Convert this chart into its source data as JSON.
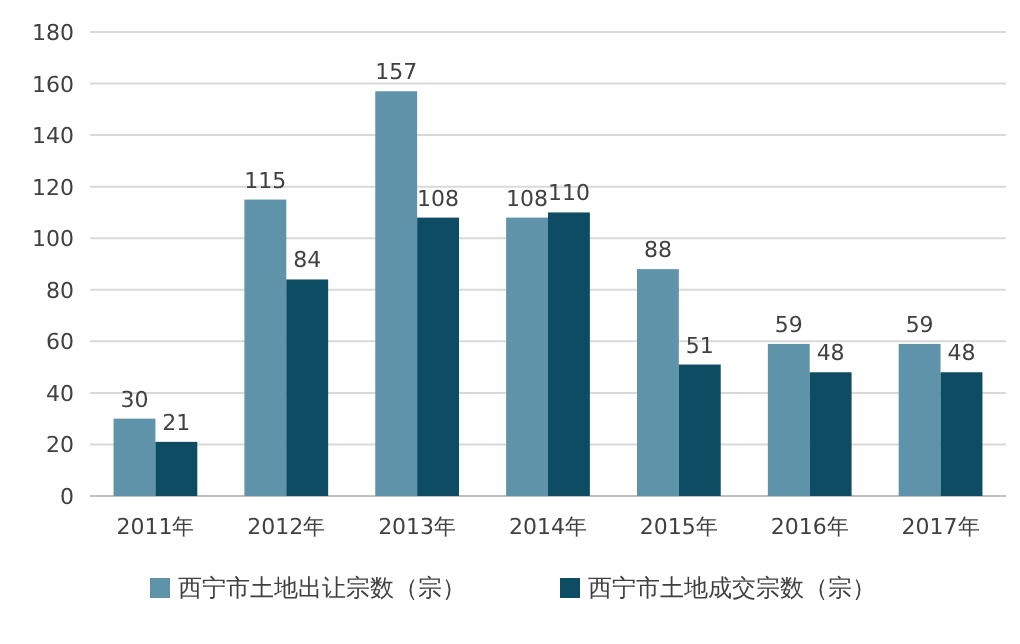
{
  "chart_data": {
    "type": "bar",
    "categories": [
      "2011年",
      "2012年",
      "2013年",
      "2014年",
      "2015年",
      "2016年",
      "2017年"
    ],
    "series": [
      {
        "name": "西宁市土地出让宗数（宗）",
        "color": "#5f93a9",
        "values": [
          30,
          115,
          157,
          108,
          88,
          59,
          59
        ]
      },
      {
        "name": "西宁市土地成交宗数（宗）",
        "color": "#0e4c63",
        "values": [
          21,
          84,
          108,
          110,
          51,
          48,
          48
        ]
      }
    ],
    "ylim": [
      0,
      180
    ],
    "yticks": [
      0,
      20,
      40,
      60,
      80,
      100,
      120,
      140,
      160,
      180
    ],
    "grid": "y",
    "legend": "bottom",
    "data_labels": true
  }
}
